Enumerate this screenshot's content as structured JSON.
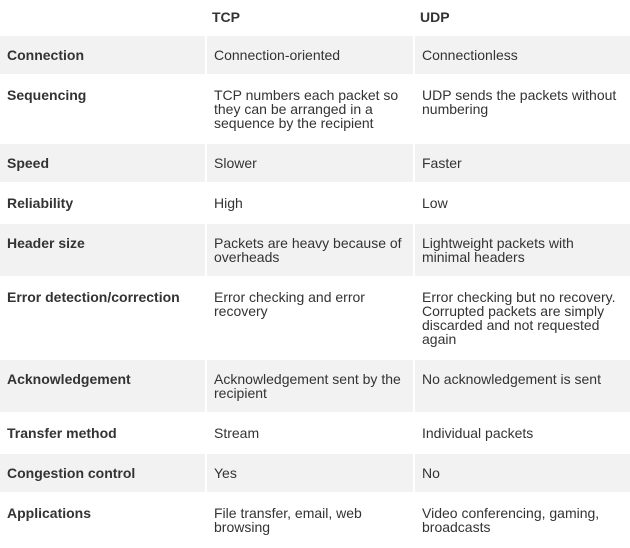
{
  "table": {
    "header": [
      "",
      "TCP",
      "UDP"
    ],
    "rows": [
      [
        "Connection",
        "Connection-oriented",
        "Connectionless"
      ],
      [
        "Sequencing",
        "TCP numbers each packet so they can be arranged in a sequence by the recipient",
        "UDP sends the packets without numbering"
      ],
      [
        "Speed",
        "Slower",
        "Faster"
      ],
      [
        "Reliability",
        "High",
        "Low"
      ],
      [
        "Header size",
        "Packets are heavy because of overheads",
        "Lightweight packets with minimal headers"
      ],
      [
        "Error detection/correction",
        "Error checking and error recovery",
        "Error checking but no recovery. Corrupted packets are simply discarded and not requested again"
      ],
      [
        "Acknowledgement",
        "Acknowledgement sent by the recipient",
        "No acknowledgement is sent"
      ],
      [
        "Transfer method",
        "Stream",
        "Individual packets"
      ],
      [
        "Congestion control",
        "Yes",
        "No"
      ],
      [
        "Applications",
        "File transfer, email, web browsing",
        "Video conferencing, gaming, broadcasts"
      ]
    ]
  }
}
